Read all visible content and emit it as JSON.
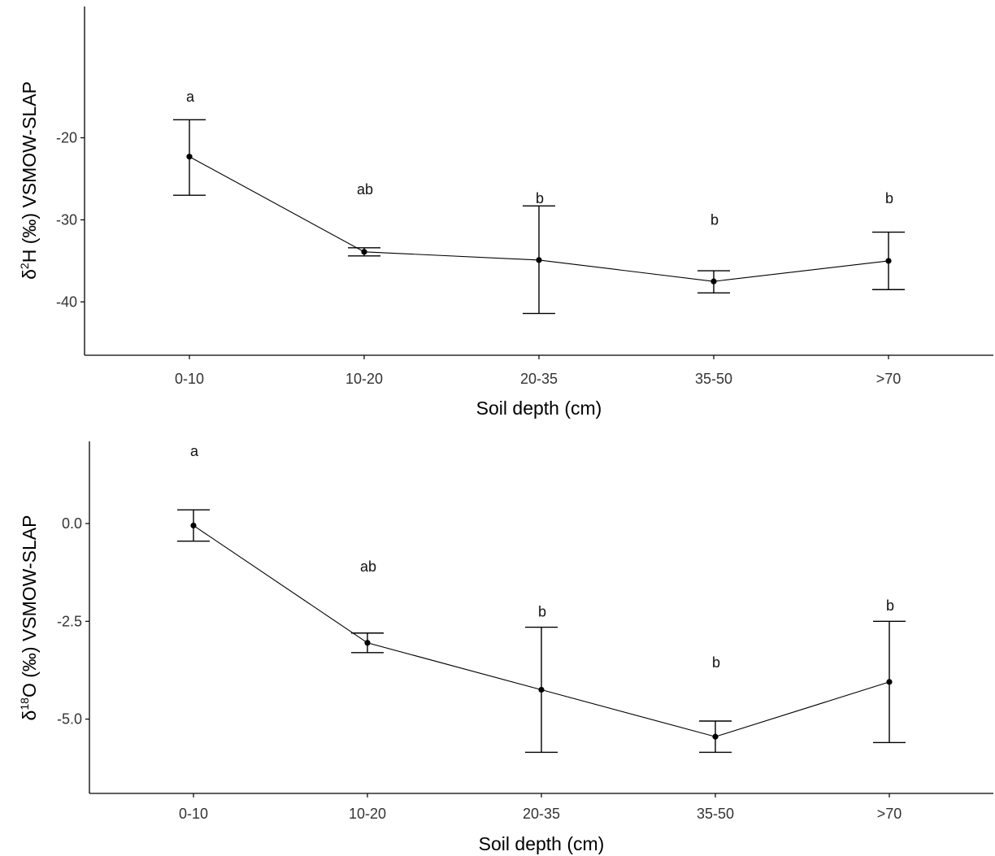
{
  "chart_data": [
    {
      "type": "line",
      "categories": [
        "0-10",
        "10-20",
        "20-35",
        "35-50",
        ">70"
      ],
      "xlabel": "Soil depth (cm)",
      "ylabel": {
        "delta": "δ",
        "sup": "2",
        "main": "H (‰) VSMOW-SLAP"
      },
      "ylim": [
        -46.5,
        -4.0
      ],
      "yticks": [
        -20,
        -30,
        -40
      ],
      "ytick_labels": [
        "-20",
        "-30",
        "-40"
      ],
      "series": [
        {
          "values": [
            -22.3,
            -33.9,
            -34.9,
            -37.5,
            -35.0
          ],
          "err_low": [
            -27.0,
            -34.4,
            -41.4,
            -38.9,
            -38.5
          ],
          "err_high": [
            -17.8,
            -33.4,
            -28.3,
            -36.2,
            -31.5
          ]
        }
      ],
      "annotations": [
        {
          "category": "0-10",
          "text": "a",
          "y": -15.0
        },
        {
          "category": "10-20",
          "text": "ab",
          "y": -26.3
        },
        {
          "category": "20-35",
          "text": "b",
          "y": -27.4
        },
        {
          "category": "35-50",
          "text": "b",
          "y": -30.0
        },
        {
          "category": ">70",
          "text": "b",
          "y": -27.4
        }
      ]
    },
    {
      "type": "line",
      "categories": [
        "0-10",
        "10-20",
        "20-35",
        "35-50",
        ">70"
      ],
      "xlabel": "Soil depth (cm)",
      "ylabel": {
        "delta": "δ",
        "sup": "18",
        "main": "O (‰) VSMOW-SLAP"
      },
      "ylim": [
        -6.9,
        2.1
      ],
      "yticks": [
        0.0,
        -2.5,
        -5.0
      ],
      "ytick_labels": [
        "0.0",
        "-2.5",
        "-5.0"
      ],
      "series": [
        {
          "values": [
            -0.05,
            -3.05,
            -4.25,
            -5.45,
            -4.05
          ],
          "err_low": [
            -0.45,
            -3.3,
            -5.85,
            -5.85,
            -5.6
          ],
          "err_high": [
            0.35,
            -2.8,
            -2.65,
            -5.05,
            -2.5
          ]
        }
      ],
      "annotations": [
        {
          "category": "0-10",
          "text": "a",
          "y": 1.85
        },
        {
          "category": "10-20",
          "text": "ab",
          "y": -1.1
        },
        {
          "category": "20-35",
          "text": "b",
          "y": -2.25
        },
        {
          "category": "35-50",
          "text": "b",
          "y": -3.55
        },
        {
          "category": ">70",
          "text": "b",
          "y": -2.1
        }
      ]
    }
  ]
}
